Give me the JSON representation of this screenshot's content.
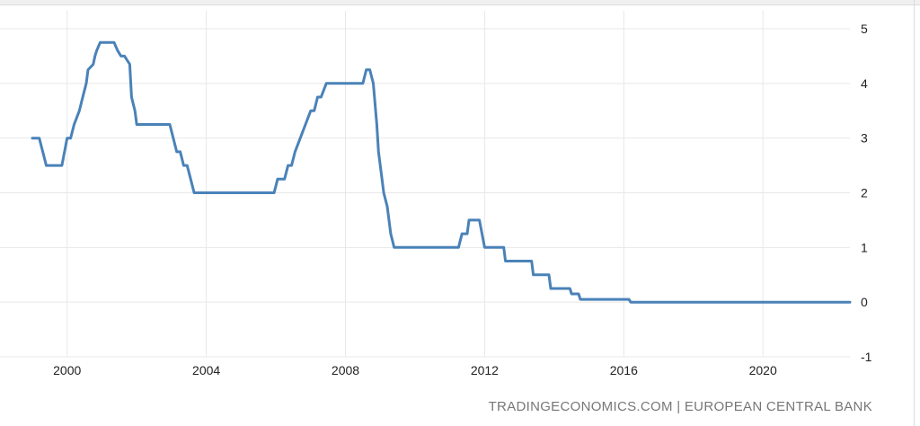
{
  "source_text": "TRADINGECONOMICS.COM | EUROPEAN CENTRAL BANK",
  "colors": {
    "line": "#4a82b8",
    "grid": "#e8e8e8",
    "text": "#222222",
    "source": "#777777"
  },
  "chart_data": {
    "type": "line",
    "title": "",
    "xlabel": "",
    "ylabel": "",
    "xlim": [
      1999.0,
      2022.5
    ],
    "ylim": [
      -1,
      5
    ],
    "x_ticks": [
      2000,
      2004,
      2008,
      2012,
      2016,
      2020
    ],
    "y_ticks": [
      5,
      4,
      3,
      2,
      1,
      0,
      -1
    ],
    "y_axis_position": "right",
    "grid": true,
    "legend": "none",
    "series": [
      {
        "color": "#4a82b8",
        "points": [
          [
            1999.0,
            3.0
          ],
          [
            1999.2,
            3.0
          ],
          [
            1999.3,
            2.75
          ],
          [
            1999.4,
            2.5
          ],
          [
            1999.85,
            2.5
          ],
          [
            2000.0,
            3.0
          ],
          [
            2000.1,
            3.0
          ],
          [
            2000.2,
            3.25
          ],
          [
            2000.35,
            3.5
          ],
          [
            2000.45,
            3.75
          ],
          [
            2000.55,
            4.0
          ],
          [
            2000.6,
            4.25
          ],
          [
            2000.75,
            4.35
          ],
          [
            2000.8,
            4.5
          ],
          [
            2000.85,
            4.6
          ],
          [
            2000.95,
            4.75
          ],
          [
            2001.35,
            4.75
          ],
          [
            2001.45,
            4.6
          ],
          [
            2001.55,
            4.5
          ],
          [
            2001.65,
            4.5
          ],
          [
            2001.8,
            4.35
          ],
          [
            2001.85,
            3.75
          ],
          [
            2001.95,
            3.5
          ],
          [
            2002.0,
            3.25
          ],
          [
            2002.95,
            3.25
          ],
          [
            2003.15,
            2.75
          ],
          [
            2003.25,
            2.75
          ],
          [
            2003.35,
            2.5
          ],
          [
            2003.45,
            2.5
          ],
          [
            2003.55,
            2.25
          ],
          [
            2003.65,
            2.0
          ],
          [
            2005.95,
            2.0
          ],
          [
            2006.05,
            2.25
          ],
          [
            2006.25,
            2.25
          ],
          [
            2006.35,
            2.5
          ],
          [
            2006.45,
            2.5
          ],
          [
            2006.55,
            2.75
          ],
          [
            2006.7,
            3.0
          ],
          [
            2006.85,
            3.25
          ],
          [
            2007.0,
            3.5
          ],
          [
            2007.1,
            3.5
          ],
          [
            2007.2,
            3.75
          ],
          [
            2007.3,
            3.75
          ],
          [
            2007.45,
            4.0
          ],
          [
            2008.5,
            4.0
          ],
          [
            2008.6,
            4.25
          ],
          [
            2008.7,
            4.25
          ],
          [
            2008.8,
            4.0
          ],
          [
            2008.9,
            3.25
          ],
          [
            2008.95,
            2.75
          ],
          [
            2009.05,
            2.25
          ],
          [
            2009.1,
            2.0
          ],
          [
            2009.2,
            1.75
          ],
          [
            2009.3,
            1.25
          ],
          [
            2009.4,
            1.0
          ],
          [
            2011.25,
            1.0
          ],
          [
            2011.35,
            1.25
          ],
          [
            2011.5,
            1.25
          ],
          [
            2011.55,
            1.5
          ],
          [
            2011.85,
            1.5
          ],
          [
            2012.0,
            1.0
          ],
          [
            2012.55,
            1.0
          ],
          [
            2012.6,
            0.75
          ],
          [
            2013.35,
            0.75
          ],
          [
            2013.4,
            0.5
          ],
          [
            2013.85,
            0.5
          ],
          [
            2013.9,
            0.25
          ],
          [
            2014.45,
            0.25
          ],
          [
            2014.5,
            0.15
          ],
          [
            2014.7,
            0.15
          ],
          [
            2014.75,
            0.05
          ],
          [
            2016.15,
            0.05
          ],
          [
            2016.2,
            0.0
          ],
          [
            2022.5,
            0.0
          ]
        ]
      }
    ]
  }
}
